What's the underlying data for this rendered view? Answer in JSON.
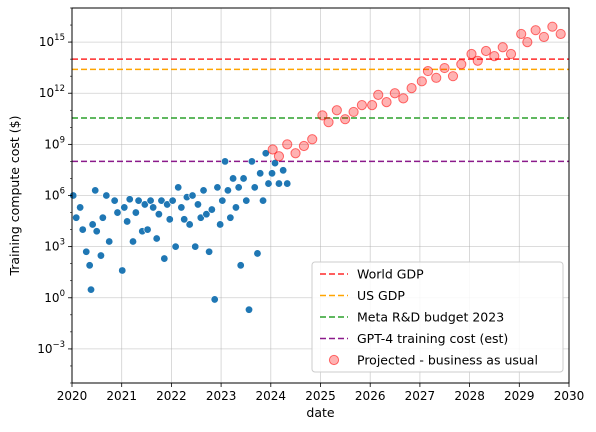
{
  "chart_data": {
    "type": "scatter",
    "xlabel": "date",
    "ylabel": "Training compute cost ($)",
    "xlim": [
      "2020-01-01",
      "2030-01-01"
    ],
    "ylim_log10": [
      -5,
      17
    ],
    "yscale": "log",
    "grid": true,
    "legend_placement": "lower-right",
    "x_ticks": [
      "2020",
      "2021",
      "2022",
      "2023",
      "2024",
      "2025",
      "2026",
      "2027",
      "2028",
      "2029",
      "2030"
    ],
    "y_ticks": [
      {
        "label_base": "10",
        "label_exp": "−3",
        "log10": -3
      },
      {
        "label_base": "10",
        "label_exp": "0",
        "log10": 0
      },
      {
        "label_base": "10",
        "label_exp": "3",
        "log10": 3
      },
      {
        "label_base": "10",
        "label_exp": "6",
        "log10": 6
      },
      {
        "label_base": "10",
        "label_exp": "9",
        "log10": 9
      },
      {
        "label_base": "10",
        "label_exp": "12",
        "log10": 12
      },
      {
        "label_base": "10",
        "label_exp": "15",
        "log10": 15
      }
    ],
    "reference_lines": [
      {
        "name": "World GDP",
        "value": 100000000000000.0,
        "color": "#ff2a2a"
      },
      {
        "name": "US GDP",
        "value": 25000000000000.0,
        "color": "#ffa500"
      },
      {
        "name": "Meta R&D budget 2023",
        "value": 35000000000.0,
        "color": "#2ca02c"
      },
      {
        "name": "GPT-4 training cost (est)",
        "value": 100000000.0,
        "color": "#8b1a8b"
      }
    ],
    "series": [
      {
        "name": "",
        "color": "#1f77b4",
        "marker": "filled-circle",
        "points": [
          [
            "2020-01-10",
            1000000.0
          ],
          [
            "2020-02-01",
            50000.0
          ],
          [
            "2020-03-01",
            200000.0
          ],
          [
            "2020-03-20",
            10000.0
          ],
          [
            "2020-04-15",
            500.0
          ],
          [
            "2020-05-10",
            80.0
          ],
          [
            "2020-05-20",
            3.0
          ],
          [
            "2020-06-01",
            20000.0
          ],
          [
            "2020-06-20",
            2000000.0
          ],
          [
            "2020-07-01",
            8000.0
          ],
          [
            "2020-08-01",
            300.0
          ],
          [
            "2020-08-15",
            50000.0
          ],
          [
            "2020-09-10",
            1000000.0
          ],
          [
            "2020-10-01",
            2000.0
          ],
          [
            "2020-11-10",
            500000.0
          ],
          [
            "2020-12-01",
            100000.0
          ],
          [
            "2021-01-05",
            40.0
          ],
          [
            "2021-01-20",
            200000.0
          ],
          [
            "2021-02-10",
            30000.0
          ],
          [
            "2021-03-01",
            600000.0
          ],
          [
            "2021-03-25",
            2000.0
          ],
          [
            "2021-04-15",
            100000.0
          ],
          [
            "2021-05-05",
            500000.0
          ],
          [
            "2021-06-01",
            8000.0
          ],
          [
            "2021-06-20",
            300000.0
          ],
          [
            "2021-07-10",
            10000.0
          ],
          [
            "2021-08-01",
            500000.0
          ],
          [
            "2021-08-20",
            200000.0
          ],
          [
            "2021-09-15",
            3000.0
          ],
          [
            "2021-10-01",
            80000.0
          ],
          [
            "2021-10-20",
            500000.0
          ],
          [
            "2021-11-10",
            200.0
          ],
          [
            "2021-12-01",
            300000.0
          ],
          [
            "2021-12-20",
            40000.0
          ],
          [
            "2022-01-10",
            500000.0
          ],
          [
            "2022-02-01",
            1000.0
          ],
          [
            "2022-02-20",
            3000000.0
          ],
          [
            "2022-03-15",
            200000.0
          ],
          [
            "2022-04-05",
            40000.0
          ],
          [
            "2022-04-25",
            800000.0
          ],
          [
            "2022-05-15",
            20000.0
          ],
          [
            "2022-06-05",
            1000000.0
          ],
          [
            "2022-06-25",
            1000.0
          ],
          [
            "2022-07-15",
            300000.0
          ],
          [
            "2022-08-05",
            50000.0
          ],
          [
            "2022-08-25",
            2000000.0
          ],
          [
            "2022-09-15",
            80000.0
          ],
          [
            "2022-10-05",
            500.0
          ],
          [
            "2022-10-25",
            150000.0
          ],
          [
            "2022-11-15",
            0.8
          ],
          [
            "2022-12-05",
            3000000.0
          ],
          [
            "2022-12-25",
            20000.0
          ],
          [
            "2023-01-10",
            500000.0
          ],
          [
            "2023-01-30",
            100000000.0
          ],
          [
            "2023-02-20",
            2000000.0
          ],
          [
            "2023-03-10",
            50000.0
          ],
          [
            "2023-03-30",
            10000000.0
          ],
          [
            "2023-04-20",
            200000.0
          ],
          [
            "2023-05-10",
            3000000.0
          ],
          [
            "2023-05-25",
            80.0
          ],
          [
            "2023-06-15",
            10000000.0
          ],
          [
            "2023-07-05",
            500000.0
          ],
          [
            "2023-07-25",
            0.2
          ],
          [
            "2023-08-15",
            100000000.0
          ],
          [
            "2023-09-05",
            3000000.0
          ],
          [
            "2023-09-25",
            400.0
          ],
          [
            "2023-10-15",
            20000000.0
          ],
          [
            "2023-11-05",
            500000.0
          ],
          [
            "2023-11-25",
            300000000.0
          ],
          [
            "2023-12-15",
            5000000.0
          ],
          [
            "2024-01-10",
            20000000.0
          ],
          [
            "2024-02-01",
            80000000.0
          ],
          [
            "2024-03-01",
            5000000.0
          ],
          [
            "2024-04-01",
            30000000.0
          ],
          [
            "2024-05-01",
            5000000.0
          ]
        ]
      },
      {
        "name": "Projected - business as usual",
        "color": "#ff0000",
        "marker": "hollow-circle",
        "points": [
          [
            "2024-01-15",
            500000000.0
          ],
          [
            "2024-03-01",
            200000000.0
          ],
          [
            "2024-05-01",
            1000000000.0
          ],
          [
            "2024-07-01",
            300000000.0
          ],
          [
            "2024-09-01",
            800000000.0
          ],
          [
            "2024-11-01",
            2000000000.0
          ],
          [
            "2025-01-15",
            50000000000.0
          ],
          [
            "2025-03-01",
            20000000000.0
          ],
          [
            "2025-05-01",
            100000000000.0
          ],
          [
            "2025-07-01",
            30000000000.0
          ],
          [
            "2025-09-01",
            80000000000.0
          ],
          [
            "2025-11-01",
            200000000000.0
          ],
          [
            "2026-01-15",
            200000000000.0
          ],
          [
            "2026-03-01",
            800000000000.0
          ],
          [
            "2026-05-01",
            300000000000.0
          ],
          [
            "2026-07-01",
            1000000000000.0
          ],
          [
            "2026-09-01",
            500000000000.0
          ],
          [
            "2026-11-01",
            2000000000000.0
          ],
          [
            "2027-01-15",
            5000000000000.0
          ],
          [
            "2027-03-01",
            20000000000000.0
          ],
          [
            "2027-05-01",
            8000000000000.0
          ],
          [
            "2027-07-01",
            30000000000000.0
          ],
          [
            "2027-09-01",
            10000000000000.0
          ],
          [
            "2027-11-01",
            50000000000000.0
          ],
          [
            "2028-01-15",
            200000000000000.0
          ],
          [
            "2028-03-01",
            80000000000000.0
          ],
          [
            "2028-05-01",
            300000000000000.0
          ],
          [
            "2028-07-01",
            150000000000000.0
          ],
          [
            "2028-09-01",
            500000000000000.0
          ],
          [
            "2028-11-01",
            200000000000000.0
          ],
          [
            "2029-01-15",
            3000000000000000.0
          ],
          [
            "2029-03-01",
            1000000000000000.0
          ],
          [
            "2029-05-01",
            5000000000000000.0
          ],
          [
            "2029-07-01",
            2000000000000000.0
          ],
          [
            "2029-09-01",
            8000000000000000.0
          ],
          [
            "2029-11-01",
            3000000000000000.0
          ]
        ]
      }
    ]
  }
}
